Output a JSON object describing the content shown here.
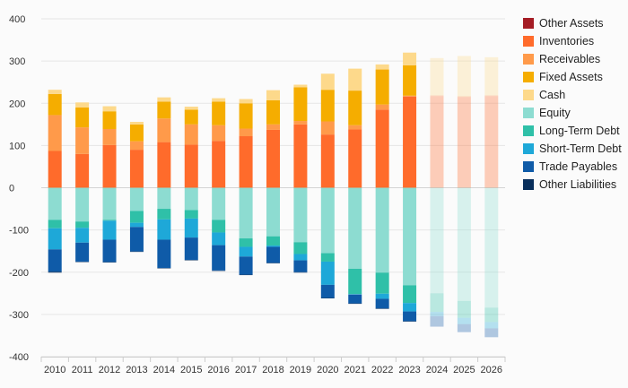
{
  "chart_data": {
    "type": "bar",
    "stacked": true,
    "categories": [
      "2010",
      "2011",
      "2012",
      "2013",
      "2014",
      "2015",
      "2016",
      "2017",
      "2018",
      "2019",
      "2020",
      "2021",
      "2022",
      "2023",
      "2024",
      "2025",
      "2026"
    ],
    "forecast_categories": [
      "2024",
      "2025",
      "2026"
    ],
    "ylim": [
      -400,
      400
    ],
    "yticks": [
      400,
      300,
      200,
      100,
      0,
      -100,
      -200,
      -300,
      -400
    ],
    "title": "",
    "xlabel": "",
    "ylabel": "",
    "grid": true,
    "legend_position": "right",
    "series": [
      {
        "name": "Other Assets",
        "color": "#a51c24",
        "values": [
          0,
          0,
          0,
          0,
          0,
          0,
          0,
          0,
          0,
          0,
          0,
          0,
          0,
          0,
          0,
          0,
          0
        ]
      },
      {
        "name": "Inventories",
        "color": "#ff6b2b",
        "values": [
          87,
          80,
          101,
          90,
          108,
          102,
          111,
          122,
          137,
          150,
          126,
          138,
          185,
          216,
          217,
          215,
          217
        ]
      },
      {
        "name": "Receivables",
        "color": "#ff9a4a",
        "values": [
          85,
          63,
          38,
          20,
          56,
          48,
          37,
          18,
          13,
          8,
          31,
          10,
          12,
          2,
          2,
          2,
          2
        ]
      },
      {
        "name": "Fixed Assets",
        "color": "#f5ad00",
        "values": [
          50,
          47,
          42,
          40,
          40,
          35,
          56,
          60,
          57,
          80,
          75,
          82,
          83,
          72,
          0,
          0,
          0
        ]
      },
      {
        "name": "Cash",
        "color": "#fdd98b",
        "values": [
          10,
          12,
          12,
          6,
          10,
          7,
          8,
          10,
          24,
          6,
          38,
          52,
          12,
          30,
          88,
          95,
          90
        ]
      },
      {
        "name": "Equity",
        "color": "#8ddcd1",
        "values": [
          -76,
          -80,
          -76,
          -55,
          -50,
          -53,
          -76,
          -120,
          -115,
          -129,
          -155,
          -192,
          -201,
          -231,
          -250,
          -268,
          -284
        ]
      },
      {
        "name": "Long-Term Debt",
        "color": "#2fc0a8",
        "values": [
          -20,
          -15,
          -2,
          -28,
          -25,
          -20,
          -30,
          -20,
          -22,
          -28,
          -20,
          -60,
          -50,
          -42,
          -44,
          -40,
          -34
        ]
      },
      {
        "name": "Short-Term Debt",
        "color": "#1ea8d8",
        "values": [
          -50,
          -35,
          -45,
          -10,
          -48,
          -45,
          -30,
          -23,
          -3,
          -15,
          -55,
          -1,
          -12,
          -20,
          -10,
          -15,
          -15
        ]
      },
      {
        "name": "Trade Payables",
        "color": "#0f5ba8",
        "values": [
          -53,
          -45,
          -53,
          -58,
          -67,
          -53,
          -60,
          -43,
          -38,
          -28,
          -31,
          -21,
          -23,
          -23,
          -25,
          -19,
          -21
        ]
      },
      {
        "name": "Other Liabilities",
        "color": "#082f5c",
        "values": [
          -2,
          -1,
          -1,
          -1,
          -1,
          -1,
          -1,
          -1,
          -1,
          -1,
          -1,
          -1,
          -1,
          -1,
          0,
          0,
          0
        ]
      }
    ]
  }
}
